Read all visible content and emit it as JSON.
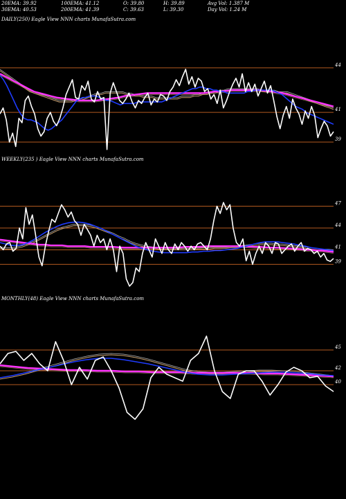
{
  "header": {
    "row1": [
      {
        "label": "20EMA: 39.92"
      },
      {
        "label": "100EMA: 41.12"
      },
      {
        "label": "O: 39.80"
      },
      {
        "label": "H: 39.89"
      },
      {
        "label": "Avg Vol: 1.387 M"
      }
    ],
    "row2": [
      {
        "label": "30EMA: 40.53"
      },
      {
        "label": "200EMA: 41.39"
      },
      {
        "label": "C: 39.63"
      },
      {
        "label": "L: 39.30"
      },
      {
        "label": "Day Vol: 1.24  M"
      }
    ]
  },
  "colors": {
    "price": "#ffffff",
    "ema_fast": "#1f3cff",
    "ema_slow": "#ff33ff",
    "ema_mid": "#c8a070",
    "ema_mid2": "#ffffff",
    "level_line": "#b35a1f"
  },
  "chart_data": [
    {
      "type": "line",
      "panel": "DAILY",
      "label": "DAILY(250) Eagle  View  NNN  charts MunafaSutra.com",
      "ylim": [
        38.3,
        44.6
      ],
      "levels": [
        44,
        41,
        39
      ],
      "series": [
        {
          "role": "price",
          "values": [
            40.9,
            41.3,
            40.5,
            39.0,
            39.6,
            38.7,
            40.6,
            40.3,
            41.8,
            42.1,
            41.4,
            40.9,
            39.9,
            39.4,
            39.7,
            40.6,
            41.0,
            40.4,
            40.1,
            40.6,
            41.3,
            42.2,
            42.7,
            43.2,
            42.0,
            41.9,
            42.8,
            42.5,
            43.1,
            41.9,
            41.7,
            42.4,
            41.9,
            42.0,
            38.5,
            42.3,
            43.0,
            42.4,
            41.8,
            41.6,
            41.9,
            42.3,
            41.7,
            41.3,
            41.8,
            41.6,
            42.0,
            42.3,
            41.5,
            41.9,
            41.7,
            42.2,
            42.1,
            41.8,
            42.4,
            42.7,
            43.2,
            42.8,
            43.4,
            43.9,
            42.9,
            43.4,
            42.7,
            43.3,
            43.1,
            42.4,
            42.6,
            41.9,
            42.2,
            41.6,
            42.5,
            41.3,
            41.8,
            42.4,
            42.9,
            43.3,
            42.7,
            43.6,
            42.4,
            43.0,
            42.4,
            42.9,
            42.1,
            42.6,
            43.1,
            42.3,
            42.8,
            41.8,
            40.7,
            39.9,
            40.8,
            41.4,
            40.6,
            41.9,
            41.3,
            40.9,
            40.2,
            41.1,
            40.6,
            41.4,
            40.8,
            39.3,
            39.9,
            40.4,
            40.1,
            39.4,
            39.7
          ]
        },
        {
          "role": "ema_fast",
          "values": [
            43.5,
            43.2,
            42.8,
            42.3,
            41.8,
            41.3,
            40.9,
            40.6,
            40.5,
            40.5,
            40.4,
            40.3,
            40.1,
            39.9,
            39.8,
            39.9,
            40.1,
            40.3,
            40.5,
            40.8,
            41.1,
            41.4,
            41.7,
            41.9,
            42.0,
            42.0,
            42.1,
            42.1,
            42.1,
            42.0,
            41.9,
            41.8,
            41.8,
            41.7,
            41.6,
            41.5,
            41.6,
            41.6,
            41.6,
            41.6,
            41.7,
            41.7,
            41.7,
            41.7,
            41.7,
            41.7,
            41.7,
            41.7,
            41.8,
            41.9,
            42.0,
            42.1,
            42.2,
            42.3,
            42.4,
            42.5,
            42.6,
            42.6,
            42.7,
            42.7,
            42.6,
            42.6,
            42.5,
            42.5,
            42.4,
            42.4,
            42.3,
            42.3,
            42.3,
            42.3,
            42.3,
            42.3,
            42.4,
            42.4,
            42.5,
            42.5,
            42.5,
            42.5,
            42.5,
            42.5,
            42.4,
            42.3,
            42.2,
            42.0,
            41.8,
            41.6,
            41.4,
            41.3,
            41.2,
            41.0,
            40.9,
            40.8,
            40.7,
            40.6,
            40.5,
            40.4,
            40.3,
            40.2
          ]
        },
        {
          "role": "ema_mid",
          "values": [
            43.8,
            43.6,
            43.4,
            43.2,
            43.0,
            42.8,
            42.6,
            42.4,
            42.3,
            42.2,
            42.1,
            42.0,
            41.9,
            41.8,
            41.7,
            41.7,
            41.7,
            41.7,
            41.8,
            41.8,
            41.9,
            42.0,
            42.1,
            42.2,
            42.2,
            42.3,
            42.3,
            42.3,
            42.3,
            42.3,
            42.2,
            42.2,
            42.1,
            42.1,
            42.0,
            42.0,
            42.0,
            41.9,
            41.9,
            41.9,
            41.9,
            41.9,
            41.9,
            42.0,
            42.0,
            42.0,
            42.1,
            42.1,
            42.2,
            42.2,
            42.3,
            42.3,
            42.4,
            42.4,
            42.5,
            42.5,
            42.5,
            42.5,
            42.5,
            42.5,
            42.5,
            42.5,
            42.4,
            42.4,
            42.4,
            42.4,
            42.3,
            42.3,
            42.3,
            42.2,
            42.1,
            42.0,
            41.9,
            41.8,
            41.7,
            41.6,
            41.5,
            41.4,
            41.3,
            41.2
          ]
        },
        {
          "role": "ema_slow",
          "values": [
            43.6,
            43.4,
            43.2,
            43.0,
            42.8,
            42.6,
            42.4,
            42.3,
            42.2,
            42.1,
            42.0,
            41.95,
            41.9,
            41.85,
            41.8,
            41.8,
            41.8,
            41.8,
            41.85,
            41.9,
            41.95,
            42.0,
            42.1,
            42.15,
            42.2,
            42.25,
            42.3,
            42.3,
            42.3,
            42.3,
            42.3,
            42.3,
            42.3,
            42.3,
            42.3,
            42.3,
            42.3,
            42.35,
            42.4,
            42.4,
            42.45,
            42.5,
            42.5,
            42.5,
            42.5,
            42.5,
            42.5,
            42.45,
            42.4,
            42.35,
            42.3,
            42.2,
            42.1,
            42.0,
            41.9,
            41.8,
            41.7,
            41.6,
            41.5,
            41.4
          ]
        }
      ]
    },
    {
      "type": "line",
      "panel": "WEEKLY",
      "label": "WEEKLY(235 ) Eagle  View  NNN  charts MunafaSutra.com",
      "ylim": [
        35.8,
        48.0
      ],
      "levels": [
        47,
        44,
        41,
        39
      ],
      "series": [
        {
          "role": "price",
          "values": [
            41.5,
            41.0,
            41.8,
            42.0,
            40.8,
            41.2,
            44.0,
            42.5,
            46.8,
            44.5,
            45.8,
            43.0,
            40.0,
            38.8,
            41.5,
            43.5,
            45.2,
            44.8,
            46.0,
            47.2,
            46.5,
            45.5,
            46.2,
            45.0,
            44.5,
            43.0,
            44.5,
            43.8,
            43.0,
            41.5,
            43.0,
            42.0,
            42.5,
            41.0,
            42.5,
            41.0,
            38.0,
            41.5,
            40.5,
            37.0,
            36.0,
            36.5,
            38.5,
            38.0,
            40.5,
            42.0,
            41.0,
            40.0,
            42.5,
            41.5,
            40.5,
            42.0,
            41.0,
            40.5,
            41.8,
            41.0,
            42.0,
            41.5,
            40.8,
            41.5,
            41.0,
            41.8,
            42.0,
            41.5,
            41.0,
            42.5,
            45.0,
            47.0,
            46.0,
            47.5,
            46.5,
            47.2,
            44.0,
            42.0,
            41.5,
            42.5,
            39.5,
            40.8,
            39.0,
            40.5,
            41.5,
            40.5,
            42.0,
            41.5,
            40.5,
            42.0,
            41.8,
            40.5,
            41.0,
            41.5,
            41.8,
            40.8,
            41.5,
            42.0,
            40.8,
            41.2,
            41.0,
            40.5,
            40.8,
            40.0,
            40.5,
            39.6,
            39.4,
            39.8
          ]
        },
        {
          "role": "ema_fast",
          "values": [
            42.0,
            41.8,
            41.6,
            41.6,
            41.7,
            42.0,
            42.4,
            42.9,
            43.4,
            43.8,
            44.2,
            44.5,
            44.7,
            44.8,
            44.8,
            44.7,
            44.5,
            44.2,
            43.9,
            43.5,
            43.1,
            42.7,
            42.3,
            41.9,
            41.5,
            41.2,
            41.0,
            40.8,
            40.7,
            40.6,
            40.6,
            40.6,
            40.6,
            40.6,
            40.7,
            40.7,
            40.8,
            40.8,
            40.9,
            40.9,
            41.0,
            41.1,
            41.2,
            41.4,
            41.6,
            41.8,
            42.0,
            42.1,
            42.1,
            42.1,
            42.0,
            41.9,
            41.8,
            41.6,
            41.5,
            41.3,
            41.2,
            41.1,
            41.0,
            40.9
          ]
        },
        {
          "role": "ema_mid",
          "values": [
            41.2,
            41.1,
            41.1,
            41.2,
            41.4,
            41.7,
            42.0,
            42.4,
            42.8,
            43.2,
            43.6,
            43.9,
            44.1,
            44.3,
            44.3,
            44.3,
            44.2,
            44.0,
            43.7,
            43.4,
            43.1,
            42.7,
            42.4,
            42.0,
            41.7,
            41.5,
            41.3,
            41.2,
            41.1,
            41.0,
            41.0,
            41.0,
            41.0,
            41.0,
            41.0,
            41.1,
            41.1,
            41.1,
            41.2,
            41.2,
            41.2,
            41.3,
            41.3,
            41.4,
            41.5,
            41.6,
            41.7,
            41.7,
            41.7,
            41.6,
            41.6,
            41.5,
            41.4,
            41.3,
            41.2,
            41.1,
            41.0,
            40.9,
            40.9,
            40.8
          ]
        },
        {
          "role": "ema_slow",
          "values": [
            42.4,
            42.3,
            42.2,
            42.1,
            42.0,
            41.9,
            41.8,
            41.7,
            41.7,
            41.6,
            41.6,
            41.6,
            41.5,
            41.5,
            41.5,
            41.5,
            41.4,
            41.4,
            41.4,
            41.4,
            41.4,
            41.35,
            41.3,
            41.3,
            41.3,
            41.3,
            41.3,
            41.3,
            41.3,
            41.3,
            41.3,
            41.3,
            41.35,
            41.4,
            41.4,
            41.4,
            41.45,
            41.5,
            41.5,
            41.5,
            41.5,
            41.5,
            41.5,
            41.5,
            41.45,
            41.4,
            41.4,
            41.35,
            41.3,
            41.3,
            41.25,
            41.2,
            41.15,
            41.1,
            41.0,
            41.0,
            40.9,
            40.9,
            40.8,
            40.7
          ]
        }
      ]
    },
    {
      "type": "line",
      "panel": "MONTHLY",
      "label": "MONTHLY(48) Eagle  View  NNN  charts MunafaSutra.com",
      "ylim": [
        34.0,
        47.0
      ],
      "levels": [
        45,
        42,
        40
      ],
      "series": [
        {
          "role": "price",
          "values": [
            43.0,
            44.5,
            44.8,
            43.5,
            44.5,
            43.0,
            42.0,
            46.2,
            43.5,
            40.0,
            42.5,
            40.8,
            43.5,
            44.0,
            42.0,
            39.5,
            36.0,
            35.0,
            36.5,
            41.0,
            42.5,
            41.5,
            41.0,
            40.5,
            43.5,
            44.5,
            47.0,
            42.0,
            39.0,
            38.0,
            41.5,
            42.0,
            42.0,
            40.5,
            38.5,
            40.0,
            41.8,
            42.5,
            42.0,
            41.0,
            41.2,
            39.8,
            39.0
          ]
        },
        {
          "role": "ema_fast",
          "values": [
            41.0,
            41.3,
            41.7,
            42.1,
            42.5,
            42.9,
            43.3,
            43.6,
            43.8,
            43.8,
            43.6,
            43.3,
            43.0,
            42.6,
            42.2,
            41.8,
            41.5,
            41.4,
            41.4,
            41.5,
            41.6,
            41.7,
            41.8,
            41.8,
            41.7,
            41.6,
            41.4,
            41.3
          ]
        },
        {
          "role": "ema_mid",
          "values": [
            40.8,
            41.1,
            41.5,
            42.0,
            42.5,
            43.0,
            43.5,
            43.9,
            44.2,
            44.3,
            44.2,
            43.9,
            43.5,
            43.0,
            42.5,
            42.0,
            41.7,
            41.6,
            41.6,
            41.7,
            41.8,
            41.9,
            41.9,
            41.8,
            41.7,
            41.5,
            41.3,
            41.1
          ]
        },
        {
          "role": "ema_slow",
          "values": [
            42.8,
            42.6,
            42.4,
            42.3,
            42.2,
            42.1,
            42.1,
            42.0,
            42.0,
            41.9,
            41.9,
            41.8,
            41.8,
            41.8,
            41.7,
            41.7,
            41.7,
            41.7,
            41.7,
            41.6,
            41.6,
            41.5,
            41.4,
            41.3,
            41.2
          ]
        }
      ]
    }
  ]
}
